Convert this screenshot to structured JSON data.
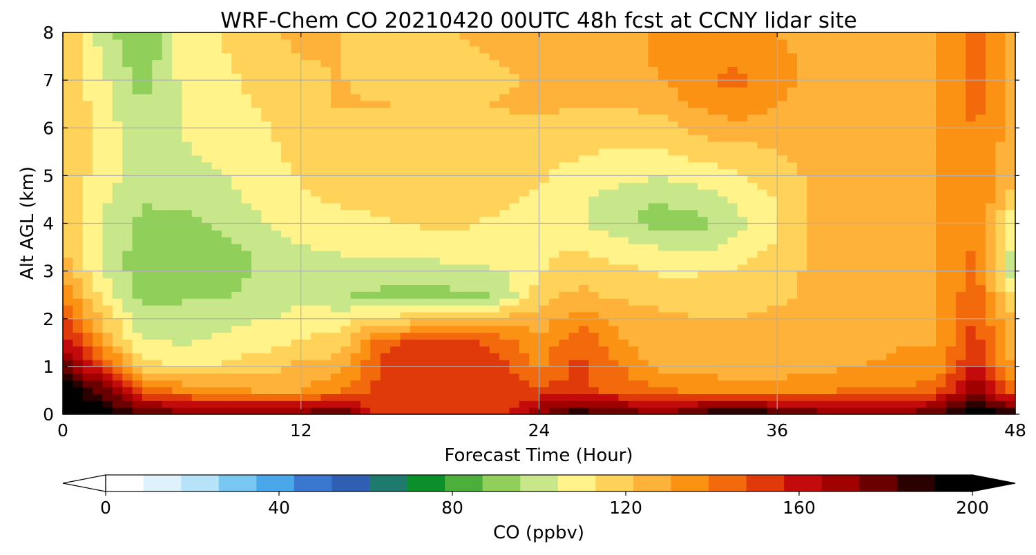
{
  "chart_data": {
    "type": "heatmap",
    "title": "WRF-Chem CO  20210420 00UTC 48h fcst at CCNY lidar site",
    "xlabel": "Forecast Time (Hour)",
    "ylabel": "Alt AGL (km)",
    "xlim": [
      0,
      48
    ],
    "ylim": [
      0,
      8
    ],
    "x_ticks": [
      "0",
      "12",
      "24",
      "36",
      "48"
    ],
    "y_ticks": [
      "0",
      "1",
      "2",
      "3",
      "4",
      "5",
      "6",
      "7",
      "8"
    ],
    "grid": true,
    "z_units": "ppbv",
    "colorbar": {
      "label": "CO  (ppbv)",
      "min": 0,
      "max": 200,
      "extend": "both",
      "ticks": [
        "0",
        "40",
        "80",
        "120",
        "160",
        "200"
      ],
      "colors": [
        "#ffffff",
        "#dff1fb",
        "#b6e3f8",
        "#79c8f3",
        "#4aa8ea",
        "#3a78cf",
        "#2e5fb2",
        "#1f7a6e",
        "#0a8f2a",
        "#4caf3c",
        "#8fcf5a",
        "#c8e68a",
        "#fff38a",
        "#ffd35a",
        "#ffb23a",
        "#fb9214",
        "#f26a0c",
        "#e03a0a",
        "#c40b0b",
        "#a00000",
        "#6a0000",
        "#2a0000",
        "#000000"
      ]
    },
    "x_hours": [
      0,
      2,
      4,
      6,
      8,
      10,
      12,
      14,
      16,
      18,
      20,
      22,
      24,
      26,
      28,
      30,
      32,
      34,
      36,
      38,
      40,
      42,
      44,
      46,
      48
    ],
    "y_km": [
      0,
      0.5,
      1,
      1.5,
      2,
      2.5,
      3,
      3.5,
      4,
      4.5,
      5,
      5.5,
      6,
      6.5,
      7,
      7.5,
      8
    ],
    "values_ppbv": [
      [
        200,
        200,
        185,
        178,
        178,
        180,
        180,
        185,
        150,
        150,
        150,
        150,
        175,
        190,
        185,
        175,
        185,
        200,
        185,
        180,
        172,
        172,
        185,
        200,
        192
      ],
      [
        200,
        180,
        145,
        138,
        132,
        130,
        130,
        140,
        150,
        152,
        152,
        150,
        150,
        150,
        145,
        140,
        138,
        135,
        135,
        138,
        140,
        140,
        145,
        175,
        138
      ],
      [
        180,
        150,
        118,
        112,
        114,
        118,
        124,
        126,
        150,
        155,
        155,
        152,
        138,
        150,
        140,
        128,
        126,
        125,
        126,
        128,
        130,
        132,
        132,
        160,
        128
      ],
      [
        165,
        130,
        106,
        104,
        106,
        110,
        114,
        118,
        145,
        150,
        150,
        145,
        132,
        148,
        132,
        124,
        122,
        122,
        124,
        126,
        128,
        130,
        130,
        152,
        122
      ],
      [
        150,
        120,
        98,
        100,
        102,
        104,
        106,
        110,
        115,
        118,
        122,
        125,
        126,
        135,
        128,
        124,
        122,
        122,
        124,
        126,
        128,
        130,
        130,
        150,
        120
      ],
      [
        138,
        110,
        92,
        94,
        94,
        100,
        104,
        96,
        94,
        92,
        94,
        96,
        118,
        124,
        120,
        118,
        118,
        118,
        120,
        124,
        126,
        128,
        130,
        145,
        112
      ],
      [
        128,
        104,
        90,
        92,
        90,
        98,
        102,
        100,
        100,
        100,
        102,
        104,
        112,
        118,
        116,
        112,
        112,
        114,
        118,
        124,
        126,
        128,
        130,
        142,
        96
      ],
      [
        122,
        102,
        92,
        92,
        92,
        98,
        104,
        106,
        108,
        108,
        110,
        110,
        112,
        112,
        108,
        104,
        102,
        108,
        114,
        124,
        128,
        128,
        130,
        140,
        100
      ],
      [
        120,
        104,
        94,
        92,
        98,
        104,
        108,
        110,
        112,
        114,
        114,
        112,
        110,
        106,
        98,
        92,
        92,
        102,
        112,
        124,
        128,
        128,
        130,
        140,
        100
      ],
      [
        120,
        106,
        96,
        98,
        102,
        106,
        112,
        114,
        116,
        116,
        116,
        114,
        112,
        106,
        100,
        96,
        100,
        106,
        114,
        124,
        128,
        128,
        130,
        140,
        116
      ],
      [
        122,
        108,
        100,
        102,
        104,
        108,
        114,
        116,
        118,
        120,
        118,
        116,
        114,
        110,
        108,
        104,
        108,
        112,
        118,
        124,
        128,
        128,
        130,
        140,
        122
      ],
      [
        122,
        110,
        100,
        104,
        106,
        110,
        116,
        118,
        120,
        120,
        118,
        118,
        116,
        114,
        112,
        112,
        116,
        118,
        122,
        126,
        128,
        128,
        130,
        140,
        124
      ],
      [
        122,
        110,
        96,
        104,
        108,
        112,
        118,
        120,
        120,
        120,
        120,
        120,
        120,
        118,
        118,
        118,
        124,
        128,
        126,
        126,
        128,
        128,
        130,
        140,
        126
      ],
      [
        122,
        108,
        96,
        104,
        110,
        114,
        120,
        122,
        122,
        120,
        120,
        122,
        124,
        122,
        122,
        124,
        132,
        136,
        130,
        126,
        128,
        128,
        130,
        142,
        128
      ],
      [
        122,
        106,
        92,
        106,
        110,
        116,
        120,
        122,
        120,
        118,
        118,
        120,
        124,
        124,
        124,
        130,
        138,
        142,
        134,
        128,
        128,
        128,
        130,
        142,
        128
      ],
      [
        122,
        104,
        88,
        108,
        112,
        118,
        122,
        122,
        118,
        118,
        120,
        122,
        124,
        124,
        126,
        132,
        136,
        136,
        132,
        128,
        128,
        128,
        130,
        142,
        128
      ],
      [
        122,
        100,
        86,
        108,
        114,
        120,
        124,
        122,
        118,
        120,
        122,
        124,
        124,
        126,
        128,
        132,
        132,
        132,
        130,
        128,
        128,
        128,
        130,
        142,
        128
      ]
    ]
  }
}
